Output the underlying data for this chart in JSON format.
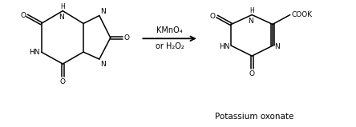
{
  "background_color": "#ffffff",
  "line_color": "#000000",
  "text_color": "#000000",
  "arrow_label_line1": "KMnO₄",
  "arrow_label_line2": "or H₂O₂",
  "product_name": "Potassium oxonate",
  "fig_width": 4.44,
  "fig_height": 1.59,
  "dpi": 100
}
